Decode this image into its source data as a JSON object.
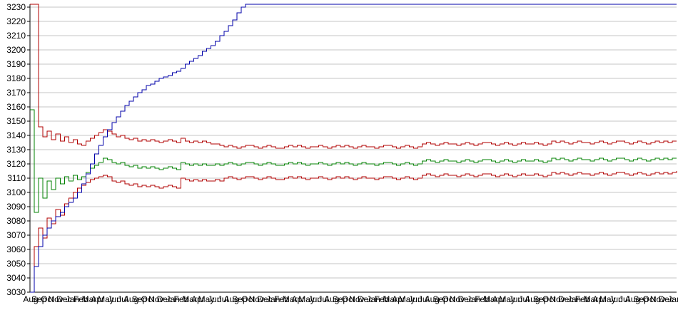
{
  "chart_data": {
    "type": "line",
    "title": "",
    "xlabel": "",
    "ylabel": "",
    "ylim": [
      3030,
      3230
    ],
    "y_tick_step": 10,
    "y_tick_labels": [
      "3030",
      "3040",
      "3050",
      "3060",
      "3070",
      "3080",
      "3090",
      "3100",
      "3110",
      "3120",
      "3130",
      "3140",
      "3150",
      "3160",
      "3170",
      "3180",
      "3190",
      "3200",
      "3210",
      "3220",
      "3230"
    ],
    "grid": true,
    "legend": "none",
    "background_color": "#ffffff",
    "grid_color": "#c6c6c6",
    "axis_color": "#000000",
    "label_color": "#000000",
    "x_labels": [
      "Aug",
      "Sep",
      "Oct",
      "Nov",
      "Dec",
      "Jan",
      "Feb",
      "Mar",
      "Apr",
      "May",
      "Jun",
      "Jul",
      "Aug",
      "Sep",
      "Oct",
      "Nov",
      "Dec",
      "Jan",
      "Feb",
      "Mar",
      "Apr",
      "May",
      "Jun",
      "Jul",
      "Aug",
      "Sep",
      "Oct",
      "Nov",
      "Dec",
      "Jan",
      "Feb",
      "Mar",
      "Apr",
      "May",
      "Jun",
      "Jul",
      "Aug",
      "Sep",
      "Oct",
      "Nov",
      "Dec",
      "Jan",
      "Feb",
      "Mar",
      "Apr",
      "May",
      "Jun",
      "Jul",
      "Aug",
      "Sep",
      "Oct",
      "Nov",
      "Dec",
      "Jan",
      "Feb",
      "Mar",
      "Apr",
      "May",
      "Jun",
      "Jul",
      "Aug",
      "Sep",
      "Oct",
      "Nov",
      "Dec",
      "Jan",
      "Feb",
      "Mar",
      "Apr",
      "May",
      "Jun",
      "Jul",
      "Aug",
      "Sep",
      "Oct",
      "Nov",
      "Dec",
      "Jan"
    ],
    "series": [
      {
        "name": "lower-band",
        "color": "#b00000",
        "values": [
          3030,
          3062,
          3075,
          3068,
          3082,
          3078,
          3088,
          3084,
          3092,
          3096,
          3100,
          3103,
          3105,
          3107,
          3109,
          3110,
          3111,
          3112,
          3111,
          3108,
          3107,
          3108,
          3106,
          3105,
          3106,
          3104,
          3105,
          3104,
          3105,
          3104,
          3103,
          3104,
          3105,
          3104,
          3103,
          3110,
          3109,
          3108,
          3109,
          3108,
          3109,
          3108,
          3108,
          3109,
          3108,
          3110,
          3111,
          3110,
          3109,
          3110,
          3111,
          3111,
          3110,
          3109,
          3110,
          3111,
          3110,
          3109,
          3109,
          3110,
          3111,
          3110,
          3111,
          3110,
          3109,
          3110,
          3110,
          3111,
          3110,
          3109,
          3110,
          3111,
          3110,
          3111,
          3110,
          3109,
          3110,
          3111,
          3110,
          3110,
          3109,
          3110,
          3111,
          3111,
          3110,
          3109,
          3110,
          3111,
          3110,
          3109,
          3110,
          3112,
          3113,
          3112,
          3111,
          3112,
          3113,
          3112,
          3112,
          3111,
          3112,
          3113,
          3112,
          3111,
          3112,
          3113,
          3113,
          3112,
          3111,
          3112,
          3113,
          3112,
          3111,
          3112,
          3113,
          3112,
          3112,
          3113,
          3112,
          3111,
          3112,
          3114,
          3113,
          3114,
          3113,
          3112,
          3113,
          3114,
          3113,
          3113,
          3112,
          3113,
          3114,
          3113,
          3112,
          3113,
          3114,
          3114,
          3113,
          3112,
          3113,
          3114,
          3113,
          3112,
          3113,
          3114,
          3113,
          3114,
          3113,
          3114,
          3115
        ]
      },
      {
        "name": "upper-band",
        "color": "#b00000",
        "values": [
          3232,
          3232,
          3146,
          3139,
          3143,
          3137,
          3141,
          3136,
          3139,
          3135,
          3137,
          3134,
          3133,
          3136,
          3138,
          3140,
          3142,
          3144,
          3143,
          3141,
          3139,
          3140,
          3138,
          3137,
          3138,
          3136,
          3137,
          3136,
          3137,
          3136,
          3135,
          3136,
          3137,
          3136,
          3135,
          3138,
          3136,
          3135,
          3136,
          3135,
          3136,
          3135,
          3134,
          3134,
          3133,
          3132,
          3133,
          3132,
          3131,
          3132,
          3133,
          3133,
          3132,
          3131,
          3132,
          3133,
          3132,
          3131,
          3131,
          3132,
          3133,
          3132,
          3133,
          3132,
          3131,
          3132,
          3132,
          3133,
          3132,
          3131,
          3132,
          3133,
          3132,
          3133,
          3132,
          3131,
          3132,
          3133,
          3132,
          3132,
          3131,
          3132,
          3133,
          3133,
          3132,
          3131,
          3132,
          3133,
          3132,
          3131,
          3132,
          3134,
          3135,
          3134,
          3133,
          3134,
          3135,
          3134,
          3134,
          3133,
          3134,
          3135,
          3134,
          3133,
          3134,
          3135,
          3135,
          3134,
          3133,
          3134,
          3135,
          3134,
          3133,
          3134,
          3135,
          3134,
          3134,
          3135,
          3134,
          3133,
          3134,
          3136,
          3135,
          3136,
          3135,
          3134,
          3135,
          3136,
          3135,
          3135,
          3134,
          3135,
          3136,
          3135,
          3134,
          3135,
          3136,
          3136,
          3135,
          3134,
          3135,
          3136,
          3135,
          3134,
          3135,
          3136,
          3135,
          3136,
          3135,
          3136,
          3136
        ]
      },
      {
        "name": "mean",
        "color": "#008000",
        "values": [
          3158,
          3086,
          3110,
          3096,
          3108,
          3102,
          3110,
          3106,
          3111,
          3108,
          3112,
          3109,
          3111,
          3114,
          3117,
          3119,
          3121,
          3124,
          3123,
          3121,
          3120,
          3121,
          3119,
          3118,
          3119,
          3117,
          3118,
          3117,
          3118,
          3117,
          3116,
          3117,
          3118,
          3117,
          3116,
          3121,
          3120,
          3119,
          3120,
          3119,
          3120,
          3119,
          3119,
          3120,
          3119,
          3120,
          3121,
          3120,
          3119,
          3120,
          3121,
          3121,
          3120,
          3119,
          3120,
          3121,
          3120,
          3119,
          3119,
          3120,
          3121,
          3120,
          3121,
          3120,
          3119,
          3120,
          3120,
          3121,
          3120,
          3119,
          3120,
          3121,
          3120,
          3121,
          3120,
          3119,
          3120,
          3121,
          3120,
          3120,
          3119,
          3120,
          3121,
          3121,
          3120,
          3119,
          3120,
          3121,
          3120,
          3119,
          3120,
          3122,
          3123,
          3122,
          3121,
          3122,
          3123,
          3122,
          3122,
          3121,
          3122,
          3123,
          3122,
          3121,
          3122,
          3123,
          3123,
          3122,
          3121,
          3122,
          3123,
          3122,
          3121,
          3122,
          3123,
          3122,
          3122,
          3123,
          3122,
          3121,
          3122,
          3124,
          3123,
          3124,
          3123,
          3122,
          3123,
          3124,
          3123,
          3123,
          3122,
          3123,
          3124,
          3123,
          3122,
          3123,
          3124,
          3124,
          3123,
          3122,
          3123,
          3124,
          3123,
          3122,
          3123,
          3124,
          3123,
          3124,
          3123,
          3124,
          3124
        ]
      },
      {
        "name": "cumulative",
        "color": "#0000a8",
        "values": [
          3030,
          3048,
          3062,
          3070,
          3075,
          3080,
          3083,
          3086,
          3090,
          3093,
          3096,
          3100,
          3106,
          3113,
          3120,
          3127,
          3133,
          3139,
          3144,
          3149,
          3153,
          3157,
          3161,
          3164,
          3167,
          3170,
          3172,
          3175,
          3176,
          3178,
          3180,
          3181,
          3182,
          3184,
          3185,
          3187,
          3190,
          3192,
          3194,
          3196,
          3199,
          3201,
          3203,
          3206,
          3210,
          3213,
          3217,
          3221,
          3226,
          3230,
          3232,
          3232,
          3232,
          3232,
          3232,
          3232,
          3232,
          3232,
          3232,
          3232,
          3232,
          3232,
          3232,
          3232,
          3232,
          3232,
          3232,
          3232,
          3232,
          3232,
          3232,
          3232,
          3232,
          3232,
          3232,
          3232,
          3232,
          3232,
          3232,
          3232,
          3232,
          3232,
          3232,
          3232,
          3232,
          3232,
          3232,
          3232,
          3232,
          3232,
          3232,
          3232,
          3232,
          3232,
          3232,
          3232,
          3232,
          3232,
          3232,
          3232,
          3232,
          3232,
          3232,
          3232,
          3232,
          3232,
          3232,
          3232,
          3232,
          3232,
          3232,
          3232,
          3232,
          3232,
          3232,
          3232,
          3232,
          3232,
          3232,
          3232,
          3232,
          3232,
          3232,
          3232,
          3232,
          3232,
          3232,
          3232,
          3232,
          3232,
          3232,
          3232,
          3232,
          3232,
          3232,
          3232,
          3232,
          3232,
          3232,
          3232,
          3232,
          3232,
          3232,
          3232,
          3232,
          3232,
          3232,
          3232,
          3232,
          3232,
          3232
        ]
      }
    ]
  }
}
